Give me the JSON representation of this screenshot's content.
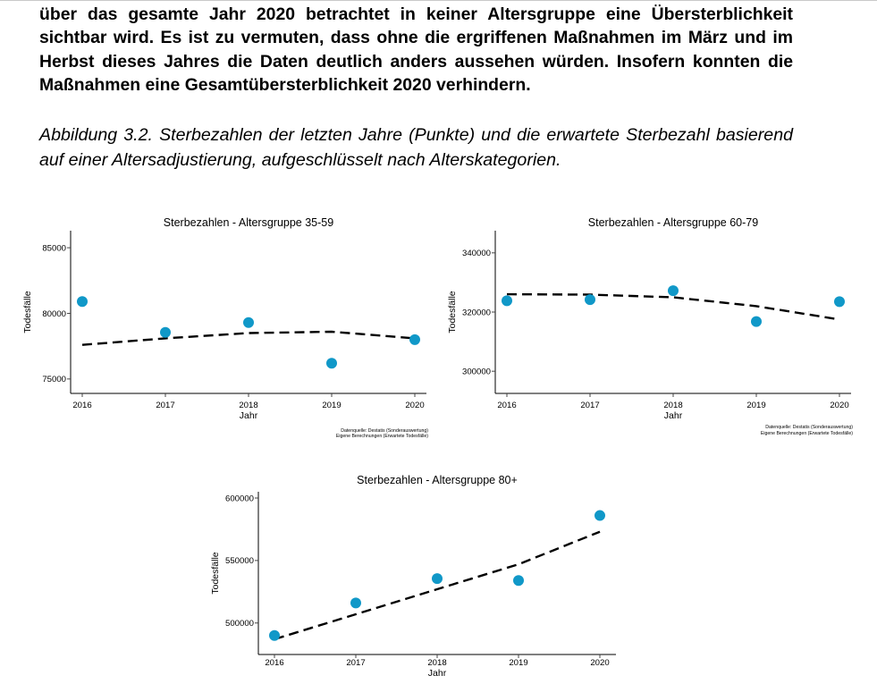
{
  "paragraph": "über das gesamte Jahr 2020 betrachtet in keiner Altersgruppe eine Übersterblichkeit sichtbar wird. Es ist zu vermuten, dass ohne die ergriffenen Maßnahmen im März und im Herbst dieses Jahres die Daten deutlich anders aussehen würden. Insofern konnten die Maßnahmen eine Gesamtübersterblichkeit 2020 verhindern.",
  "caption": "Abbildung 3.2. Sterbezahlen der letzten Jahre (Punkte) und die erwartete Sterbezahl basierend auf einer Altersadjustierung, aufgeschlüsselt nach Alterskategorien.",
  "colors": {
    "points": "#1098c8",
    "expected_line": "#000000"
  },
  "chart_data": [
    {
      "type": "scatter",
      "title": "Sterbezahlen - Altersgruppe 35-59",
      "xlabel": "Jahr",
      "ylabel": "Todesfälle",
      "x": [
        2016,
        2017,
        2018,
        2019,
        2020
      ],
      "series": [
        {
          "values": [
            80900,
            78550,
            79300,
            76200,
            78000
          ]
        },
        {
          "values": [
            77600,
            78100,
            78500,
            78600,
            78100
          ]
        }
      ],
      "yticks": [
        75000,
        80000,
        85000
      ],
      "ylim": [
        73900,
        86300
      ],
      "grid": false,
      "source_lines": [
        "Datenquelle: Destatis (Sonderauswertung)",
        "Eigene Berechnungen (Erwartete Todesfälle)"
      ]
    },
    {
      "type": "scatter",
      "title": "Sterbezahlen - Altersgruppe 60-79",
      "xlabel": "Jahr",
      "ylabel": "Todesfälle",
      "x": [
        2016,
        2017,
        2018,
        2019,
        2020
      ],
      "series": [
        {
          "values": [
            323800,
            324200,
            327200,
            316800,
            323500
          ]
        },
        {
          "values": [
            326000,
            325900,
            325000,
            322000,
            317500
          ]
        }
      ],
      "yticks": [
        300000,
        320000,
        340000
      ],
      "ylim": [
        292500,
        347500
      ],
      "grid": false,
      "source_lines": [
        "Datenquelle: Destatis (Sonderauswertung)",
        "Eigene Berechnungen (Erwartete Todesfälle)"
      ]
    },
    {
      "type": "scatter",
      "title": "Sterbezahlen - Altersgruppe 80+",
      "xlabel": "Jahr",
      "ylabel": "Todesfälle",
      "x": [
        2016,
        2017,
        2018,
        2019,
        2020
      ],
      "series": [
        {
          "values": [
            490000,
            516000,
            535500,
            534000,
            586000
          ]
        },
        {
          "values": [
            487000,
            507000,
            527000,
            547000,
            573000
          ]
        }
      ],
      "yticks": [
        500000,
        550000,
        600000
      ],
      "ylim": [
        474800,
        605000
      ],
      "grid": false,
      "source_lines": []
    }
  ]
}
